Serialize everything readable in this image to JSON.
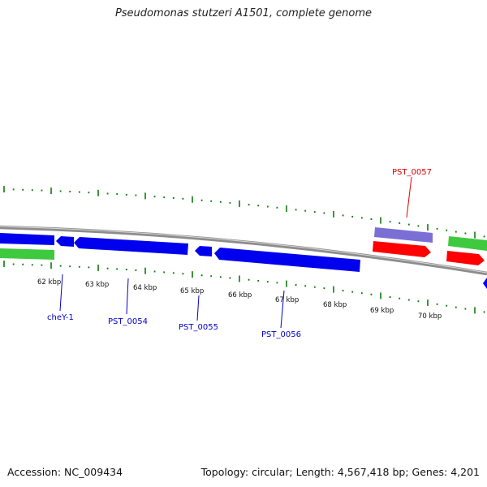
{
  "title": "Pseudomonas stutzeri A1501, complete genome",
  "footer": {
    "accession": "Accession: NC_009434",
    "summary": "Topology: circular; Length: 4,567,418 bp; Genes: 4,201"
  },
  "colors": {
    "backbone": "#8c8c8c",
    "tick": "#0d7a0d",
    "cds_reverse": "#0000ee",
    "cds_forward": "#ff0000",
    "feature_purple": "#7b6fd6",
    "feature_green": "#3ec93e",
    "label_blue": "#0000cc",
    "label_red": "#dd0000"
  },
  "scale_labels": [
    "62 kbp",
    "63 kbp",
    "64 kbp",
    "65 kbp",
    "66 kbp",
    "67 kbp",
    "68 kbp",
    "69 kbp",
    "70 kbp"
  ],
  "gene_labels": [
    {
      "text": "cheY-1",
      "color": "#0000cc"
    },
    {
      "text": "PST_0054",
      "color": "#0000cc"
    },
    {
      "text": "PST_0055",
      "color": "#0000cc"
    },
    {
      "text": "PST_0056",
      "color": "#0000cc"
    },
    {
      "text": "PST_0057",
      "color": "#dd0000"
    }
  ]
}
